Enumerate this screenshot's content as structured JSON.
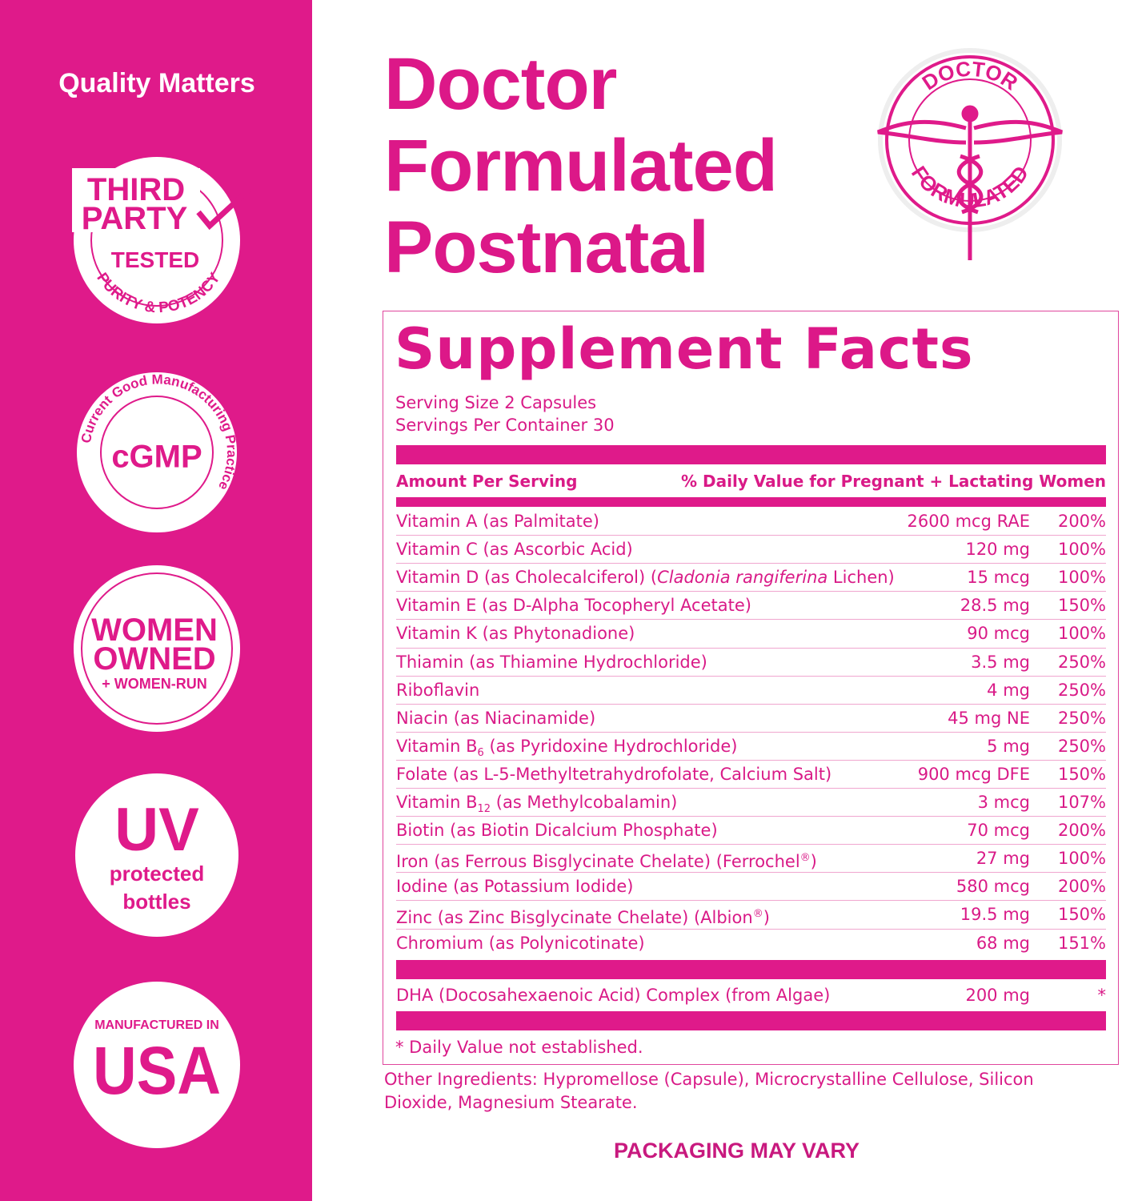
{
  "sidebar": {
    "title": "Quality Matters",
    "third_party": {
      "lines": [
        "THIRD",
        "PARTY",
        "TESTED"
      ],
      "ring": "PURITY & POTENCY"
    },
    "cgmp": {
      "center": "cGMP",
      "ring": "Current Good Manufacturing Practice"
    },
    "women": {
      "lines": [
        "WOMEN",
        "OWNED",
        "+ WOMEN-RUN"
      ]
    },
    "uv": {
      "lines": [
        "UV",
        "protected",
        "bottles"
      ]
    },
    "usa": {
      "lines": [
        "MANUFACTURED IN",
        "USA"
      ]
    }
  },
  "header": {
    "title_lines": [
      "Doctor",
      "Formulated",
      "Postnatal"
    ],
    "seal": {
      "top": "DOCTOR",
      "bottom": "FORMULATED"
    }
  },
  "facts": {
    "title": "Supplement Facts",
    "serving_size": "Serving Size 2 Capsules",
    "servings_per_container": "Servings Per Container 30",
    "columns": [
      "Amount Per Serving",
      "% Daily Value for Pregnant + Lactating Women"
    ],
    "rows": [
      {
        "name": [
          {
            "text": "Vitamin A (as Palmitate)"
          }
        ],
        "amount": "2600 mcg RAE",
        "dv": "200%"
      },
      {
        "name": [
          {
            "text": "Vitamin C (as Ascorbic Acid)"
          }
        ],
        "amount": "120 mg",
        "dv": "100%"
      },
      {
        "name": [
          {
            "text": "Vitamin D (as Cholecalciferol) ("
          },
          {
            "text": "Cladonia rangiferina",
            "style": "italic"
          },
          {
            "text": " Lichen)"
          }
        ],
        "amount": "15 mcg",
        "dv": "100%"
      },
      {
        "name": [
          {
            "text": "Vitamin E (as D-Alpha Tocopheryl Acetate)"
          }
        ],
        "amount": "28.5 mg",
        "dv": "150%"
      },
      {
        "name": [
          {
            "text": "Vitamin K (as Phytonadione)"
          }
        ],
        "amount": "90 mcg",
        "dv": "100%"
      },
      {
        "name": [
          {
            "text": "Thiamin (as Thiamine Hydrochloride)"
          }
        ],
        "amount": "3.5 mg",
        "dv": "250%"
      },
      {
        "name": [
          {
            "text": "Riboflavin"
          }
        ],
        "amount": "4 mg",
        "dv": "250%"
      },
      {
        "name": [
          {
            "text": "Niacin (as Niacinamide)"
          }
        ],
        "amount": "45 mg NE",
        "dv": "250%"
      },
      {
        "name": [
          {
            "text": "Vitamin B"
          },
          {
            "text": "6",
            "style": "sub"
          },
          {
            "text": " (as Pyridoxine Hydrochloride)"
          }
        ],
        "amount": "5 mg",
        "dv": "250%"
      },
      {
        "name": [
          {
            "text": "Folate (as L-5-Methyltetrahydrofolate, Calcium Salt)"
          }
        ],
        "amount": "900 mcg DFE",
        "dv": "150%"
      },
      {
        "name": [
          {
            "text": "Vitamin B"
          },
          {
            "text": "12",
            "style": "sub"
          },
          {
            "text": " (as Methylcobalamin)"
          }
        ],
        "amount": "3 mcg",
        "dv": "107%"
      },
      {
        "name": [
          {
            "text": "Biotin (as Biotin Dicalcium Phosphate)"
          }
        ],
        "amount": "70 mcg",
        "dv": "200%"
      },
      {
        "name": [
          {
            "text": "Iron (as Ferrous Bisglycinate Chelate) (Ferrochel"
          },
          {
            "text": "®",
            "style": "sup"
          },
          {
            "text": ")"
          }
        ],
        "amount": "27 mg",
        "dv": "100%"
      },
      {
        "name": [
          {
            "text": "Iodine (as Potassium Iodide)"
          }
        ],
        "amount": "580 mcg",
        "dv": "200%"
      },
      {
        "name": [
          {
            "text": "Zinc (as Zinc Bisglycinate Chelate) (Albion"
          },
          {
            "text": "®",
            "style": "sup"
          },
          {
            "text": ")"
          }
        ],
        "amount": "19.5 mg",
        "dv": "150%"
      },
      {
        "name": [
          {
            "text": "Chromium (as Polynicotinate)"
          }
        ],
        "amount": "68 mg",
        "dv": "151%"
      }
    ],
    "extra_rows": [
      {
        "name": [
          {
            "text": "DHA (Docosahexaenoic Acid) Complex (from Algae)"
          }
        ],
        "amount": "200 mg",
        "dv": "*"
      }
    ],
    "footnote": "* Daily Value not established."
  },
  "other_ingredients": "Other Ingredients: Hypromellose (Capsule), Microcrystalline Cellulose, Silicon Dioxide, Magnesium Stearate.",
  "packaging_note": "PACKAGING MAY VARY"
}
